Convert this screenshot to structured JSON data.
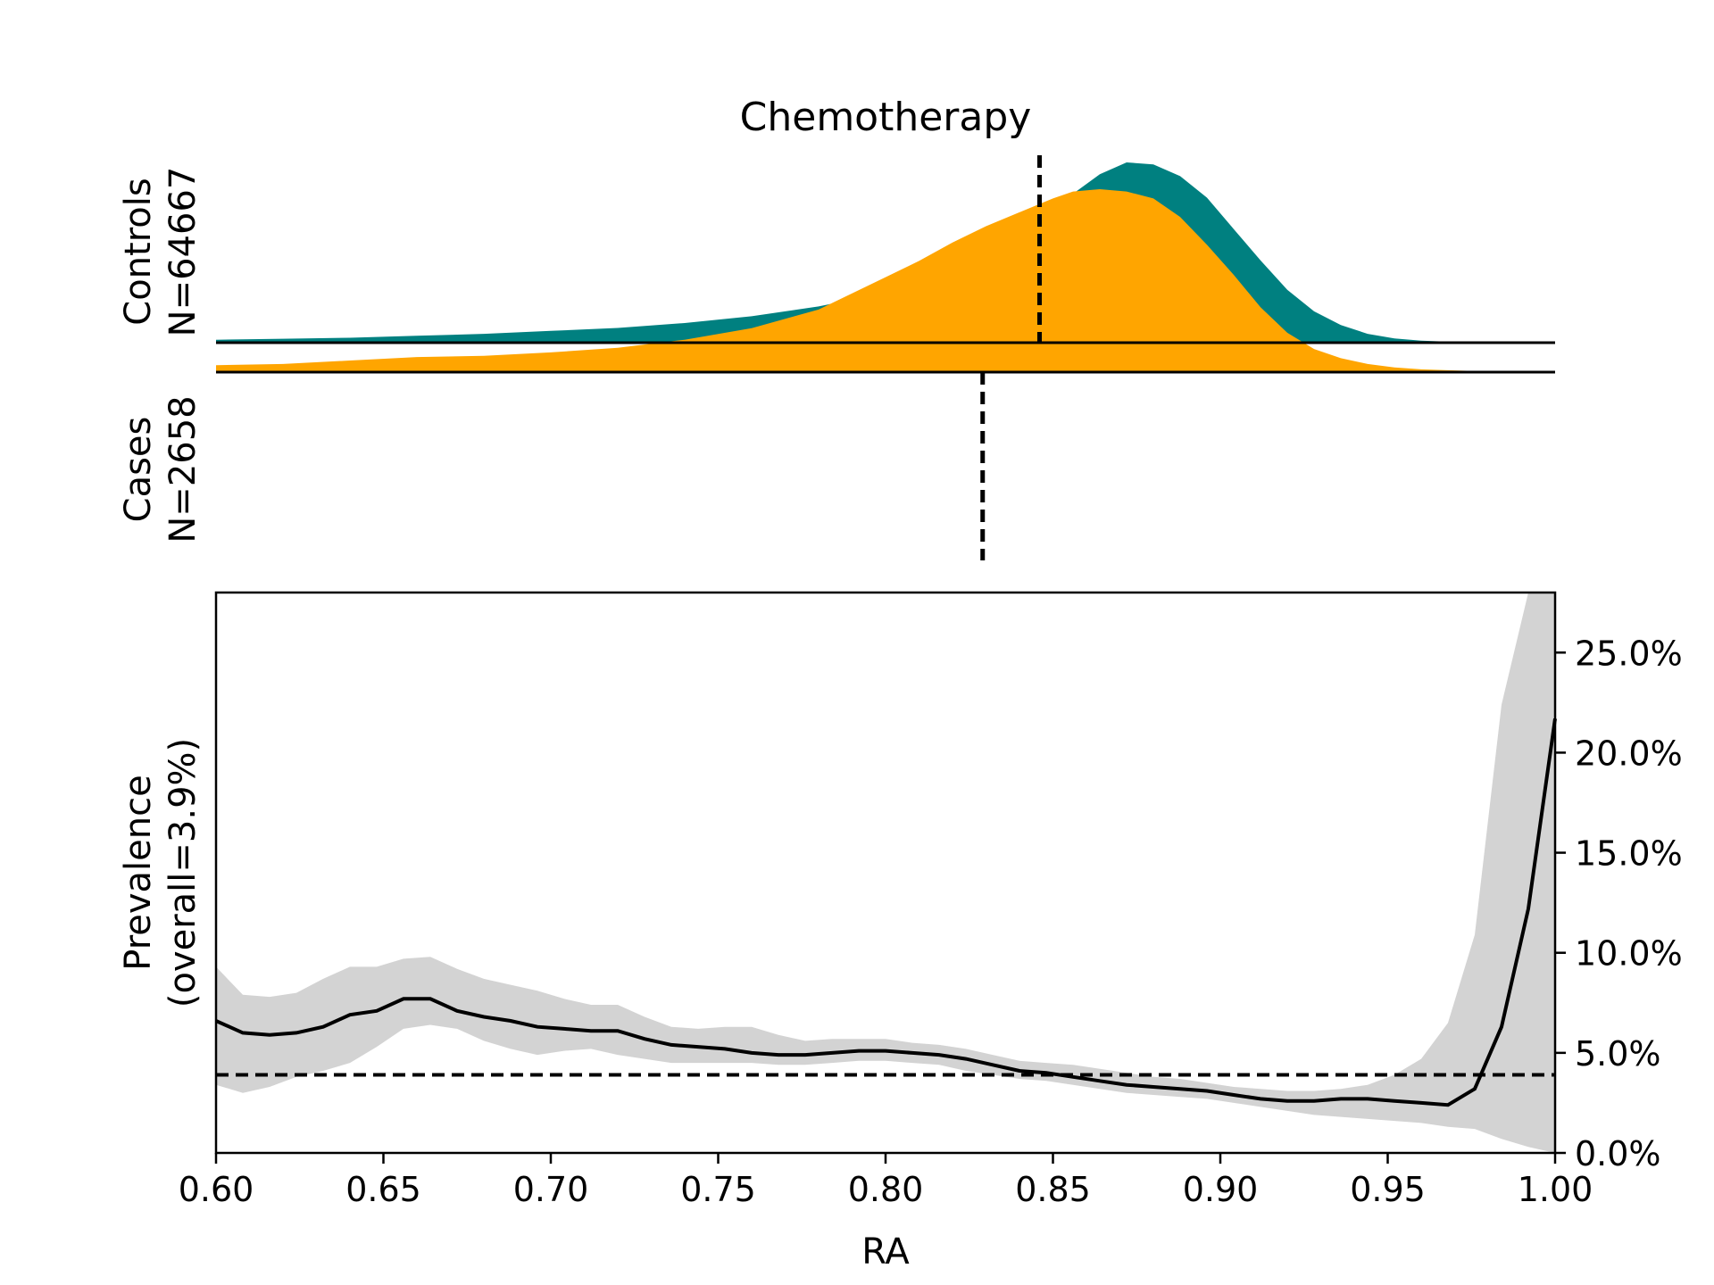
{
  "chart_data": [
    {
      "type": "area",
      "panel": "density",
      "title": "Chemotherapy",
      "x_range": [
        0.6,
        1.0
      ],
      "series": [
        {
          "name": "Controls",
          "label_line1": "Controls",
          "label_line2": "N=64667",
          "color": "#008080",
          "direction": "up",
          "median_line": 0.846,
          "x": [
            0.6,
            0.62,
            0.64,
            0.66,
            0.68,
            0.7,
            0.72,
            0.74,
            0.76,
            0.78,
            0.79,
            0.8,
            0.81,
            0.82,
            0.83,
            0.84,
            0.85,
            0.856,
            0.864,
            0.872,
            0.88,
            0.888,
            0.896,
            0.904,
            0.912,
            0.92,
            0.928,
            0.936,
            0.944,
            0.952,
            0.96,
            0.968,
            0.976,
            0.984,
            0.992,
            1.0
          ],
          "density": [
            0.015,
            0.02,
            0.025,
            0.035,
            0.045,
            0.06,
            0.075,
            0.1,
            0.135,
            0.185,
            0.22,
            0.26,
            0.31,
            0.38,
            0.47,
            0.57,
            0.68,
            0.76,
            0.86,
            0.92,
            0.91,
            0.85,
            0.74,
            0.58,
            0.42,
            0.27,
            0.16,
            0.09,
            0.045,
            0.022,
            0.01,
            0.005,
            0.003,
            0.002,
            0.001,
            0.0
          ]
        },
        {
          "name": "Cases",
          "label_line1": "Cases",
          "label_line2": "N=2658",
          "color": "#ffa500",
          "direction": "down",
          "median_line": 0.829,
          "x": [
            0.6,
            0.62,
            0.64,
            0.66,
            0.68,
            0.7,
            0.72,
            0.74,
            0.76,
            0.78,
            0.79,
            0.8,
            0.81,
            0.82,
            0.83,
            0.84,
            0.85,
            0.856,
            0.864,
            0.872,
            0.88,
            0.888,
            0.896,
            0.904,
            0.912,
            0.92,
            0.928,
            0.936,
            0.944,
            0.952,
            0.96,
            0.968,
            0.976,
            0.984,
            0.992,
            1.0
          ],
          "density": [
            0.03,
            0.035,
            0.05,
            0.065,
            0.07,
            0.085,
            0.105,
            0.14,
            0.19,
            0.27,
            0.34,
            0.41,
            0.48,
            0.56,
            0.63,
            0.69,
            0.75,
            0.78,
            0.79,
            0.78,
            0.75,
            0.67,
            0.55,
            0.42,
            0.28,
            0.17,
            0.1,
            0.06,
            0.035,
            0.02,
            0.012,
            0.008,
            0.005,
            0.003,
            0.002,
            0.0
          ]
        }
      ]
    },
    {
      "type": "line",
      "panel": "prevalence",
      "xlabel": "RA",
      "ylabel_line1": "Prevalence",
      "ylabel_line2": "(overall=3.9%)",
      "xlim": [
        0.6,
        1.0
      ],
      "ylim": [
        0.0,
        0.28
      ],
      "x_ticks": [
        0.6,
        0.65,
        0.7,
        0.75,
        0.8,
        0.85,
        0.9,
        0.95,
        1.0
      ],
      "x_tick_labels": [
        "0.60",
        "0.65",
        "0.70",
        "0.75",
        "0.80",
        "0.85",
        "0.90",
        "0.95",
        "1.00"
      ],
      "y_ticks": [
        0.0,
        0.05,
        0.1,
        0.15,
        0.2,
        0.25
      ],
      "y_tick_labels": [
        "0.0%",
        "5.0%",
        "10.0%",
        "15.0%",
        "20.0%",
        "25.0%"
      ],
      "y_axis_side": "right",
      "overall_prevalence": 0.039,
      "series": [
        {
          "color": "#000000",
          "x": [
            0.6,
            0.608,
            0.616,
            0.624,
            0.632,
            0.64,
            0.648,
            0.656,
            0.664,
            0.672,
            0.68,
            0.688,
            0.696,
            0.704,
            0.712,
            0.72,
            0.728,
            0.736,
            0.744,
            0.752,
            0.76,
            0.768,
            0.776,
            0.784,
            0.792,
            0.8,
            0.808,
            0.816,
            0.824,
            0.832,
            0.84,
            0.848,
            0.856,
            0.864,
            0.872,
            0.88,
            0.888,
            0.896,
            0.904,
            0.912,
            0.92,
            0.928,
            0.936,
            0.944,
            0.952,
            0.96,
            0.968,
            0.976,
            0.984,
            0.992,
            1.0
          ],
          "y": [
            0.066,
            0.06,
            0.059,
            0.06,
            0.063,
            0.069,
            0.071,
            0.077,
            0.077,
            0.071,
            0.068,
            0.066,
            0.063,
            0.062,
            0.061,
            0.061,
            0.057,
            0.054,
            0.053,
            0.052,
            0.05,
            0.049,
            0.049,
            0.05,
            0.051,
            0.051,
            0.05,
            0.049,
            0.047,
            0.044,
            0.041,
            0.04,
            0.038,
            0.036,
            0.034,
            0.033,
            0.032,
            0.031,
            0.029,
            0.027,
            0.026,
            0.026,
            0.027,
            0.027,
            0.026,
            0.025,
            0.024,
            0.032,
            0.063,
            0.122,
            0.217
          ],
          "ci_low": [
            0.034,
            0.03,
            0.033,
            0.038,
            0.041,
            0.045,
            0.053,
            0.062,
            0.064,
            0.062,
            0.056,
            0.052,
            0.049,
            0.051,
            0.052,
            0.049,
            0.047,
            0.045,
            0.045,
            0.045,
            0.045,
            0.044,
            0.044,
            0.045,
            0.046,
            0.046,
            0.045,
            0.044,
            0.041,
            0.039,
            0.037,
            0.036,
            0.034,
            0.032,
            0.03,
            0.029,
            0.028,
            0.027,
            0.025,
            0.023,
            0.021,
            0.019,
            0.018,
            0.017,
            0.016,
            0.015,
            0.013,
            0.012,
            0.007,
            0.003,
            0.0
          ],
          "ci_high": [
            0.093,
            0.079,
            0.078,
            0.08,
            0.087,
            0.093,
            0.093,
            0.097,
            0.098,
            0.092,
            0.087,
            0.084,
            0.081,
            0.077,
            0.074,
            0.074,
            0.068,
            0.063,
            0.062,
            0.063,
            0.063,
            0.059,
            0.056,
            0.057,
            0.057,
            0.057,
            0.055,
            0.054,
            0.052,
            0.049,
            0.046,
            0.045,
            0.044,
            0.042,
            0.04,
            0.038,
            0.037,
            0.035,
            0.033,
            0.032,
            0.031,
            0.031,
            0.032,
            0.034,
            0.039,
            0.047,
            0.065,
            0.109,
            0.224,
            0.28,
            0.28
          ]
        }
      ]
    }
  ]
}
